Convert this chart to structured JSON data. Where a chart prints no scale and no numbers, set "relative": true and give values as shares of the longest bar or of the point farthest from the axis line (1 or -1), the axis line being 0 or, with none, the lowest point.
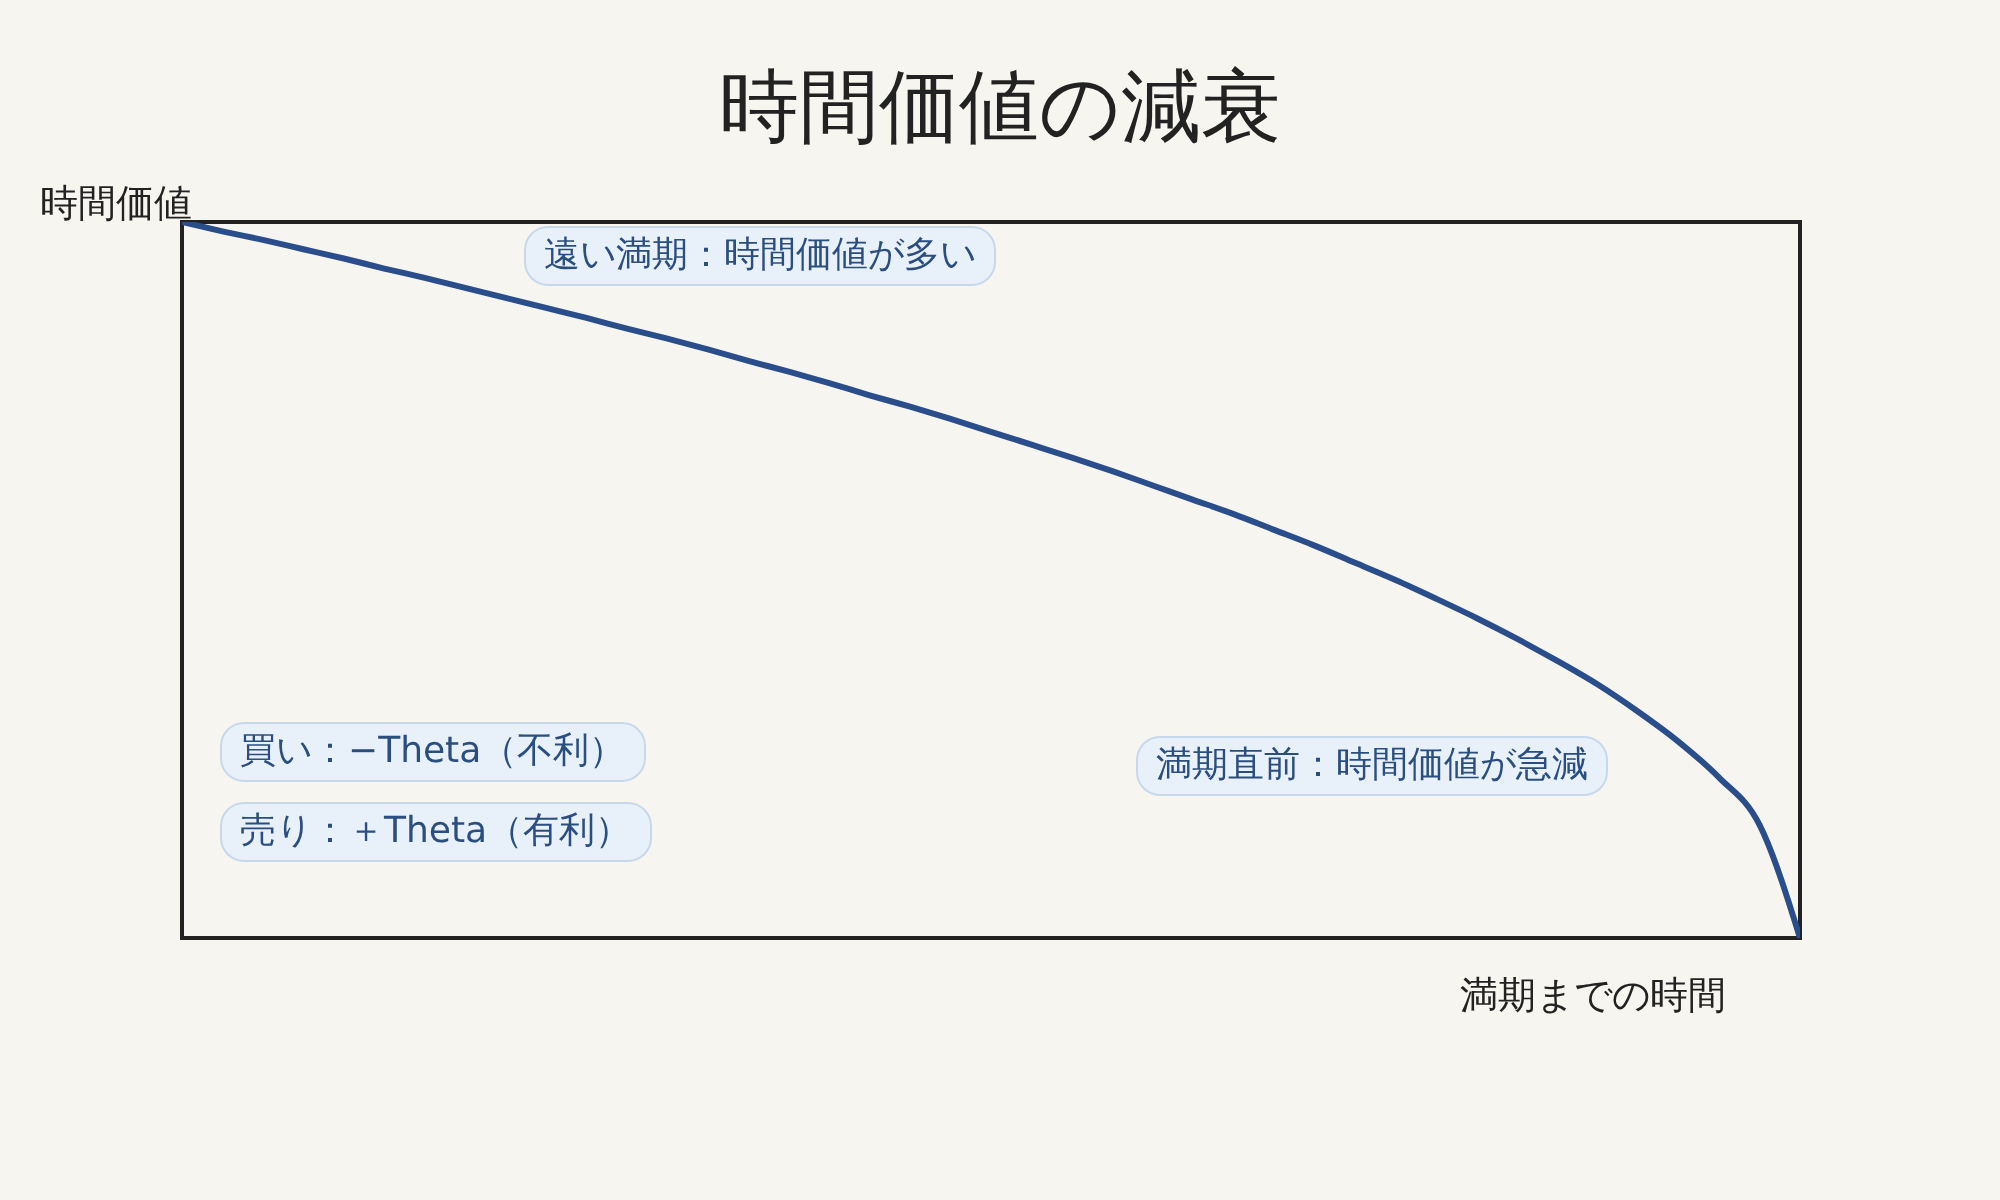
{
  "chart_data": {
    "type": "line",
    "title": "時間価値の減衰",
    "xlabel": "満期までの時間",
    "ylabel": "時間価値",
    "relative": true,
    "marker": "none",
    "line_style": "solid",
    "categories": [
      null,
      null,
      null,
      null,
      null,
      null,
      null,
      null,
      null,
      null,
      null,
      null,
      null,
      null,
      null,
      null,
      null,
      null,
      null,
      null,
      null,
      null,
      null,
      null,
      null,
      null,
      null,
      null,
      null,
      null,
      null,
      null,
      null,
      null,
      null,
      null,
      null,
      null,
      null,
      null,
      null
    ],
    "series": [
      {
        "color": "#2a4d8c",
        "values": [
          1,
          0.987,
          0.975,
          0.962,
          0.949,
          0.935,
          0.922,
          0.908,
          0.894,
          0.88,
          0.866,
          0.851,
          0.837,
          0.822,
          0.806,
          0.791,
          0.775,
          0.758,
          0.742,
          0.725,
          0.707,
          0.689,
          0.671,
          0.652,
          0.632,
          0.612,
          0.592,
          0.57,
          0.548,
          0.524,
          0.5,
          0.474,
          0.447,
          0.418,
          0.387,
          0.354,
          0.316,
          0.274,
          0.224,
          0.158,
          0
        ]
      }
    ],
    "annotations": [
      "遠い満期：時間価値が多い",
      "満期直前：時間価値が急減",
      "買い：−Theta（不利）",
      "売り：＋Theta（有利）"
    ]
  }
}
